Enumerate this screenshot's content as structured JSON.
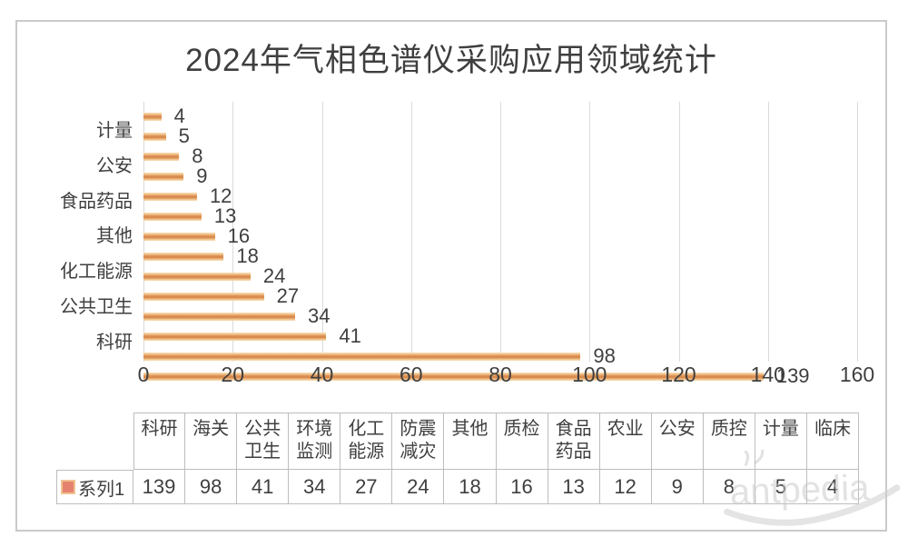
{
  "title": "2024年气相色谱仪采购应用领域统计",
  "chart_data": {
    "type": "bar",
    "orientation": "horizontal",
    "title": "2024年气相色谱仪采购应用领域统计",
    "categories": [
      "科研",
      "海关",
      "公共卫生",
      "环境监测",
      "化工能源",
      "防震减灾",
      "其他",
      "质检",
      "食品药品",
      "农业",
      "公安",
      "质控",
      "计量",
      "临床"
    ],
    "series": [
      {
        "name": "系列1",
        "values": [
          139,
          98,
          41,
          34,
          27,
          24,
          18,
          16,
          13,
          12,
          9,
          8,
          5,
          4
        ]
      }
    ],
    "bar_order_on_axis": "smallest value at top, largest at bottom",
    "y_tick_label_interval": 2,
    "xlim": [
      0,
      160
    ],
    "x_ticks": [
      "0",
      "20",
      "40",
      "60",
      "80",
      "100",
      "120",
      "140",
      "160"
    ],
    "grid": "vertical gridlines on",
    "legend_position": "bottom data table",
    "colors": {
      "bar_light": "#f0c28b",
      "bar_dark": "#d8884a",
      "legend_marker_fill": "#e5826f",
      "legend_marker_border": "#f2c28f",
      "gridline": "#dadada",
      "table_border": "#bdbdbd",
      "text": "#3f3f3f",
      "frame_border": "#c9c9c9"
    }
  },
  "table": {
    "series_label": "系列1",
    "headers": [
      [
        "科研"
      ],
      [
        "海关"
      ],
      [
        "公共",
        "卫生"
      ],
      [
        "环境",
        "监测"
      ],
      [
        "化工",
        "能源"
      ],
      [
        "防震",
        "减灾"
      ],
      [
        "其他"
      ],
      [
        "质检"
      ],
      [
        "食品",
        "药品"
      ],
      [
        "农业"
      ],
      [
        "公安"
      ],
      [
        "质控"
      ],
      [
        "计量"
      ],
      [
        "临床"
      ]
    ],
    "values": [
      "139",
      "98",
      "41",
      "34",
      "27",
      "24",
      "18",
      "16",
      "13",
      "12",
      "9",
      "8",
      "5",
      "4"
    ]
  },
  "watermark": "antpedia"
}
